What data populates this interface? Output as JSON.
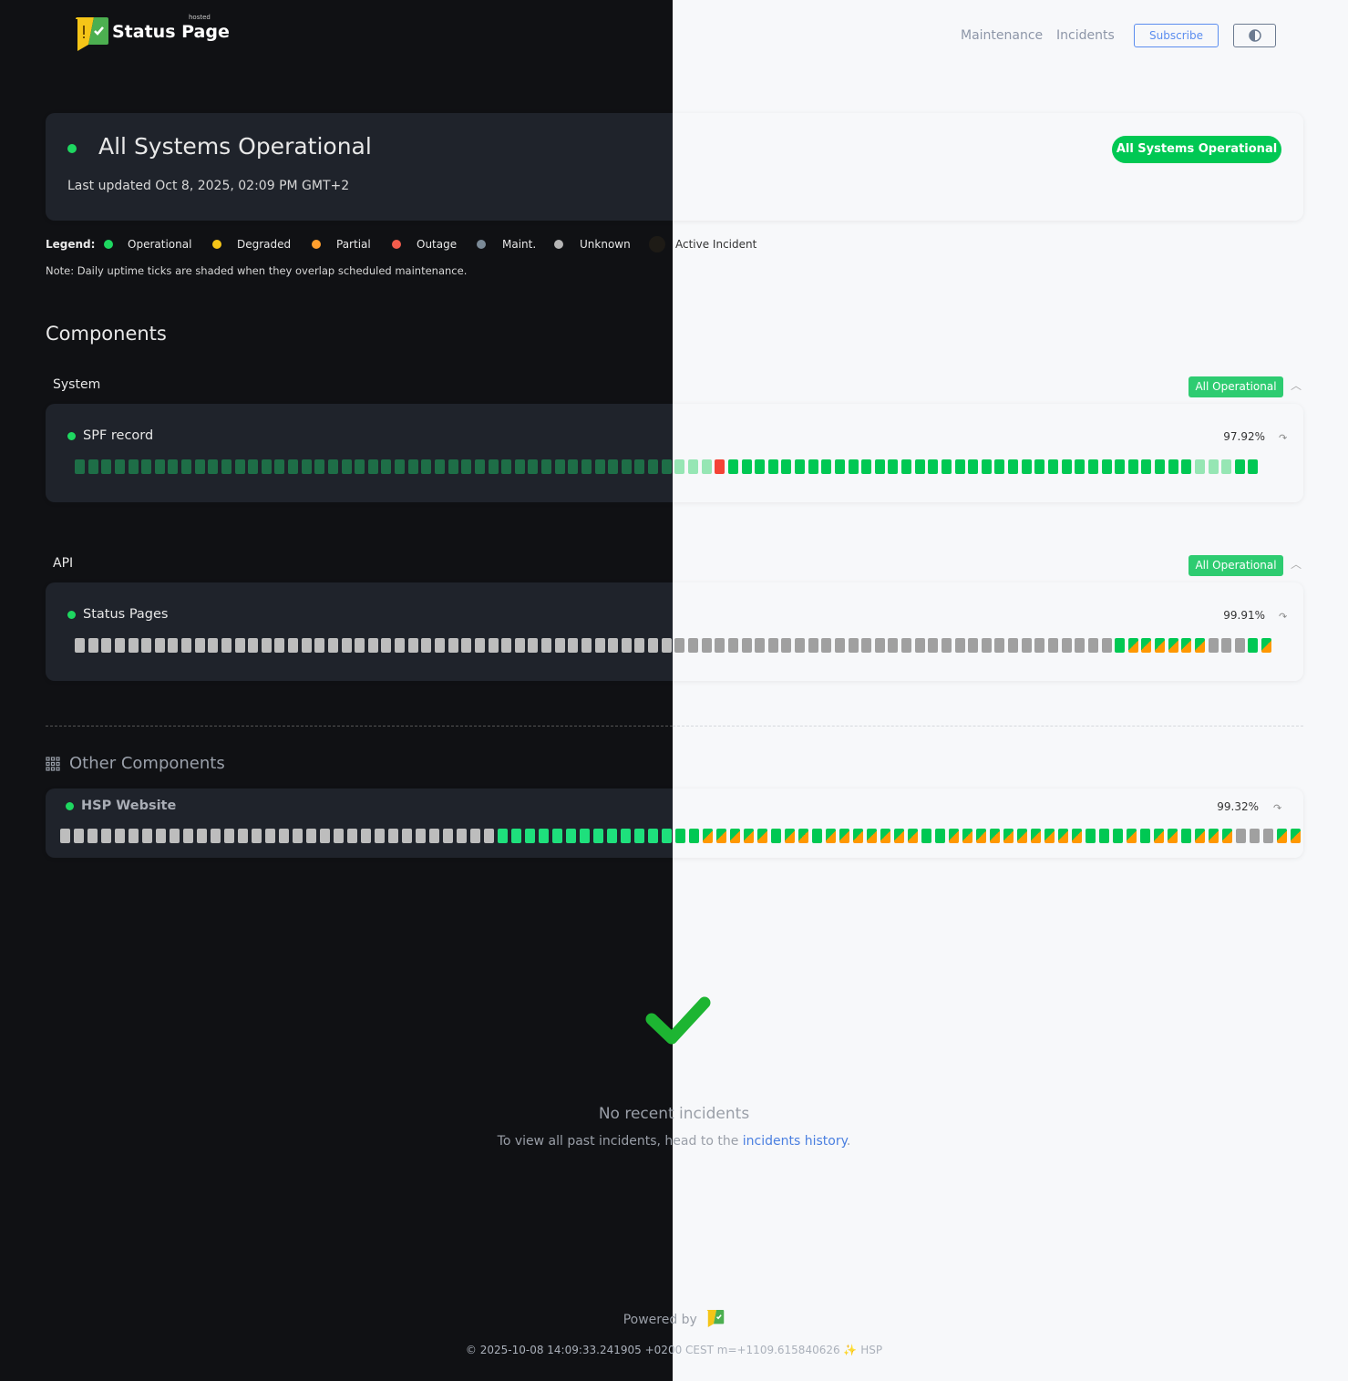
{
  "brand": {
    "name": "Status Page",
    "tag": "hosted"
  },
  "nav": {
    "maintenance": "Maintenance",
    "incidents": "Incidents",
    "subscribe": "Subscribe",
    "theme_icon": "half-circle-contrast-icon"
  },
  "status": {
    "title": "All Systems Operational",
    "last_updated": "Last updated Oct 8, 2025, 02:09 PM GMT+2",
    "badge": "All Systems Operational"
  },
  "legend": {
    "label": "Legend:",
    "items": [
      {
        "label": "Operational",
        "color": "#1ed760"
      },
      {
        "label": "Degraded",
        "color": "#f5c518"
      },
      {
        "label": "Partial",
        "color": "#ff9f2e"
      },
      {
        "label": "Outage",
        "color": "#f25c4c"
      },
      {
        "label": "Maint.",
        "color": "#7b8a97"
      },
      {
        "label": "Unknown",
        "color": "#b5b5b5"
      },
      {
        "label": "Active Incident",
        "color": "#1e1b16"
      }
    ],
    "note": "Note: Daily uptime ticks are shaded when they overlap scheduled maintenance."
  },
  "components_title": "Components",
  "tick_codes": {
    "o": "operational",
    "p": "partial",
    "g": "unknown",
    "r": "outage",
    "l": "operational-maintenance-shaded"
  },
  "groups": [
    {
      "label": "System",
      "badge": "All Operational",
      "component": {
        "name": "SPF record",
        "uptime": "97.92%",
        "ticks": "ooooooooooooooooooooooooooooooooooooooooooooolllrooooooooooooooooooooooooooooooooooollloo"
      }
    },
    {
      "label": "API",
      "badge": "All Operational",
      "component": {
        "name": "Status Pages",
        "uptime": "99.91%",
        "ticks": "ggggggggggggggggggggggggggggggggggggggggggggggggggggggggggggggggggggggggggggggoppppppgggop"
      }
    }
  ],
  "other": {
    "title": "Other Components",
    "component": {
      "name": "HSP Website",
      "uptime": "99.32%",
      "ticks": "ggggggggggggggggggggggggggggggggooooooooooooooopppppoppopppppppooppppppppppooopoppopppgggpp"
    }
  },
  "incidents": {
    "title": "No recent incidents",
    "sub": "To view all past incidents, head to the ",
    "link": "incidents history",
    "end": "."
  },
  "footer": {
    "powered": "Powered by",
    "stamp": "© 2025-10-08 14:09:33.241905 +0200 CEST m=+1109.615840626 ✨ HSP"
  },
  "colors": {
    "accent_green": "#00c853",
    "link": "#4a7fe0",
    "dark_bg": "#101114",
    "light_bg": "#f7f8fa"
  }
}
